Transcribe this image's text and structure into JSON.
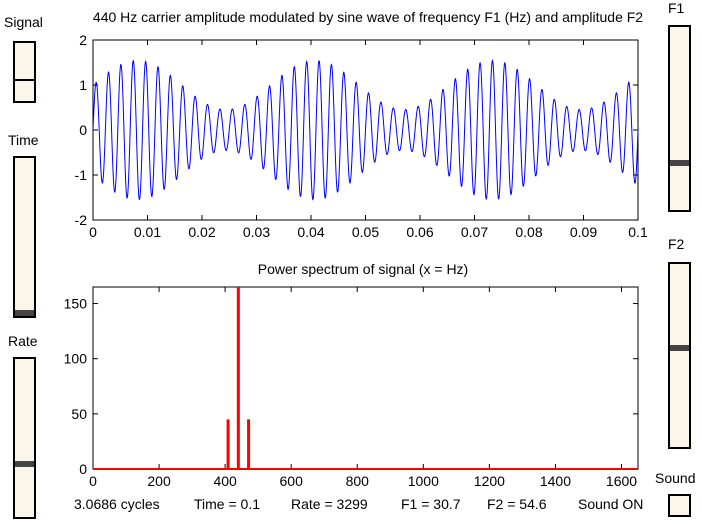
{
  "sliders": {
    "signal": {
      "label": "Signal",
      "value": 0.62
    },
    "time": {
      "label": "Time",
      "value": 0.0
    },
    "rate": {
      "label": "Rate",
      "value": 0.32
    },
    "f1": {
      "label": "F1",
      "value": 0.27
    },
    "f2": {
      "label": "F2",
      "value": 0.55
    },
    "sound": {
      "label": "Sound"
    }
  },
  "status": {
    "cycles": "3.0686 cycles",
    "time": "Time = 0.1",
    "rate": "Rate = 3299",
    "f1": "F1 = 30.7",
    "f2": "F2 = 54.6",
    "sound": "Sound ON"
  },
  "chart_data": [
    {
      "type": "line",
      "title": "440 Hz carrier amplitude modulated by sine wave of frequency F1 (Hz) and amplitude F2",
      "color": "#0000ff",
      "carrier_hz": 440,
      "modulation_hz": 30.7,
      "modulation_depth": 0.546,
      "x_range": [
        0,
        0.1
      ],
      "xlim": [
        0,
        0.1
      ],
      "ylim": [
        -2,
        2
      ],
      "xticks": [
        "0",
        "0.01",
        "0.02",
        "0.03",
        "0.04",
        "0.05",
        "0.06",
        "0.07",
        "0.08",
        "0.09",
        "0.1"
      ],
      "yticks": [
        "2",
        "1",
        "0",
        "-1",
        "-2"
      ]
    },
    {
      "type": "line",
      "title": "Power spectrum of signal (x = Hz)",
      "color": "#ff0000",
      "peaks": [
        {
          "x": 409,
          "y": 45
        },
        {
          "x": 440,
          "y": 165
        },
        {
          "x": 471,
          "y": 45
        }
      ],
      "xlim": [
        0,
        1650
      ],
      "ylim": [
        0,
        165
      ],
      "xticks": [
        "0",
        "200",
        "400",
        "600",
        "800",
        "1000",
        "1200",
        "1400",
        "1600"
      ],
      "yticks": [
        "150",
        "100",
        "50",
        "0"
      ]
    }
  ]
}
